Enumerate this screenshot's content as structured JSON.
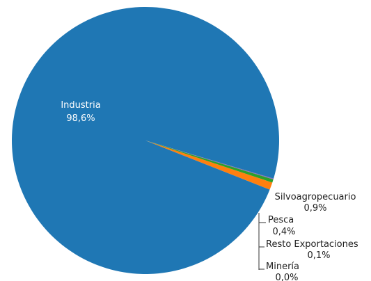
{
  "chart_data": {
    "type": "pie",
    "slices": [
      {
        "label": "Industria",
        "value_text": "98,6%",
        "value": 98.6,
        "color": "#1f77b4"
      },
      {
        "label": "Silvoagropecuario",
        "value_text": "0,9%",
        "value": 0.9,
        "color": "#ff7f0e"
      },
      {
        "label": "Pesca",
        "value_text": "0,4%",
        "value": 0.4,
        "color": "#2ca02c"
      },
      {
        "label": "Resto Exportaciones",
        "value_text": "0,1%",
        "value": 0.1,
        "color": "#9467bd"
      },
      {
        "label": "Minería",
        "value_text": "0,0%",
        "value": 0.0,
        "color": "#d62728"
      }
    ],
    "title": "",
    "legend": "none"
  }
}
